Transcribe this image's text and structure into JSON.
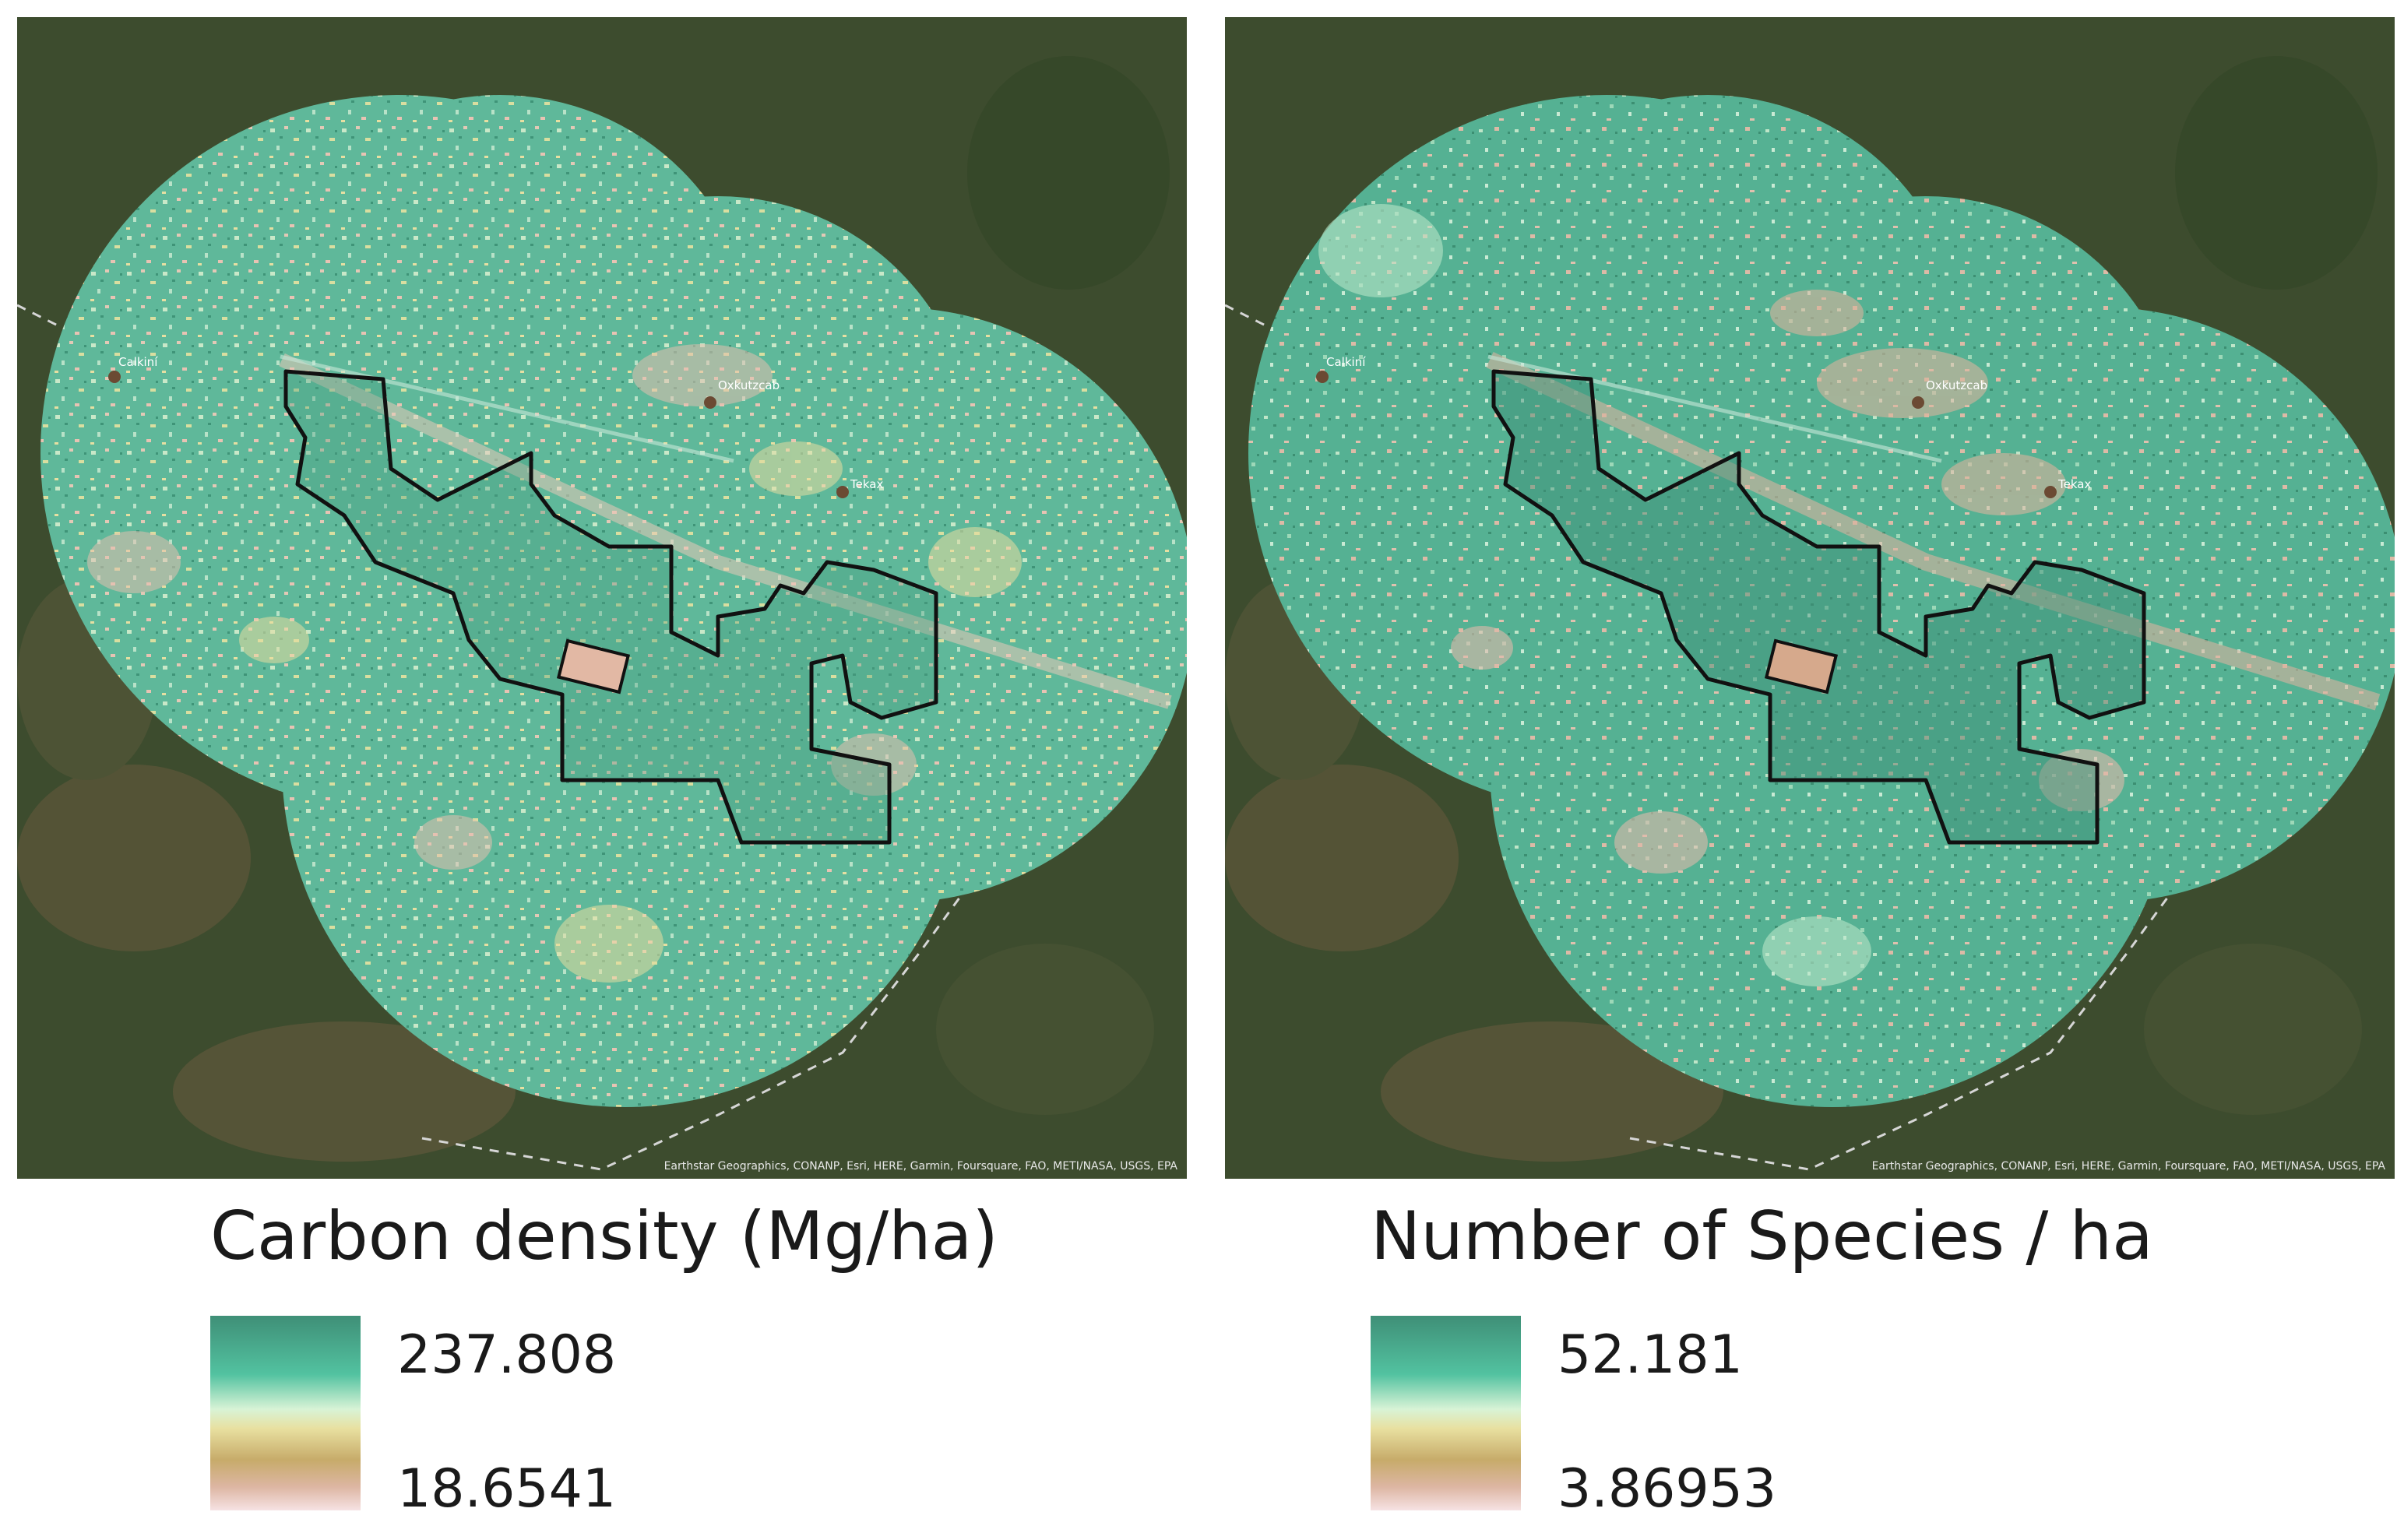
{
  "maps": [
    {
      "id": "carbon",
      "towns": [
        "Calkiní",
        "Oxkutzcab",
        "Tekax"
      ],
      "attribution": "Earthstar Geographics, CONANP, Esri, HERE, Garmin, Foursquare, FAO, METI/NASA, USGS, EPA",
      "legend": {
        "title": "Carbon density (Mg/ha)",
        "max": "237.808",
        "min": "18.6541"
      },
      "colors": {
        "high": "#3f8f77",
        "mid": "#d8f3d6",
        "yellow": "#e8e0a0",
        "low": "#ddb6a3"
      }
    },
    {
      "id": "species",
      "towns": [
        "Calkiní",
        "Oxkutzcab",
        "Tekax"
      ],
      "attribution": "Earthstar Geographics, CONANP, Esri, HERE, Garmin, Foursquare, FAO, METI/NASA, USGS, EPA",
      "legend": {
        "title": "Number of Species / ha",
        "max": "52.181",
        "min": "3.86953"
      },
      "colors": {
        "high": "#3f8f77",
        "mid": "#d8f3d6",
        "yellow": "#e8e0a0",
        "low": "#ddb6a3"
      }
    }
  ]
}
